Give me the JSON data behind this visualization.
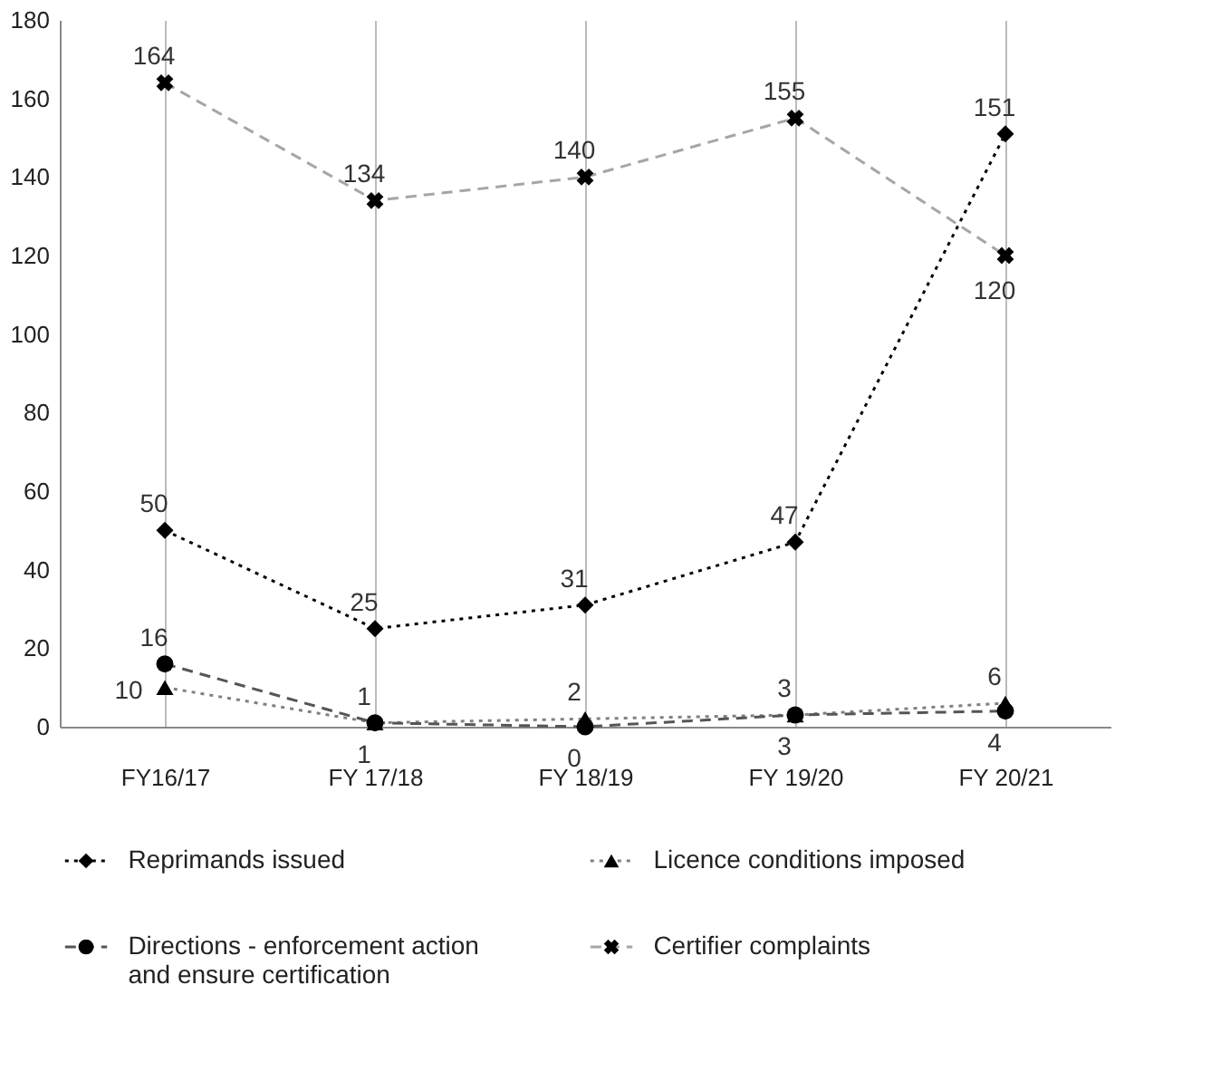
{
  "chart_data": {
    "type": "line",
    "categories": [
      "FY16/17",
      "FY 17/18",
      "FY 18/19",
      "FY 19/20",
      "FY 20/21"
    ],
    "ylim": [
      0,
      180
    ],
    "yticks": [
      0,
      20,
      40,
      60,
      80,
      100,
      120,
      140,
      160,
      180
    ],
    "grid": "x",
    "legend": "bottom",
    "data_labels": true,
    "series": [
      {
        "name": "Reprimands issued",
        "color": "#000000",
        "marker": "diamond",
        "line_style": "dotted",
        "values": [
          50,
          25,
          31,
          47,
          151
        ]
      },
      {
        "name": "Licence conditions imposed",
        "color": "#808080",
        "marker": "triangle",
        "line_style": "dotted",
        "values": [
          10,
          1,
          2,
          3,
          6
        ]
      },
      {
        "name": "Directions - enforcement action\nand ensure certification",
        "color": "#555555",
        "marker": "circle",
        "line_style": "dashed",
        "values": [
          16,
          1,
          0,
          3,
          4
        ]
      },
      {
        "name": "Certifier complaints",
        "color": "#a6a6a6",
        "marker": "cross",
        "line_style": "dashed",
        "values": [
          164,
          134,
          140,
          155,
          120
        ]
      }
    ]
  }
}
